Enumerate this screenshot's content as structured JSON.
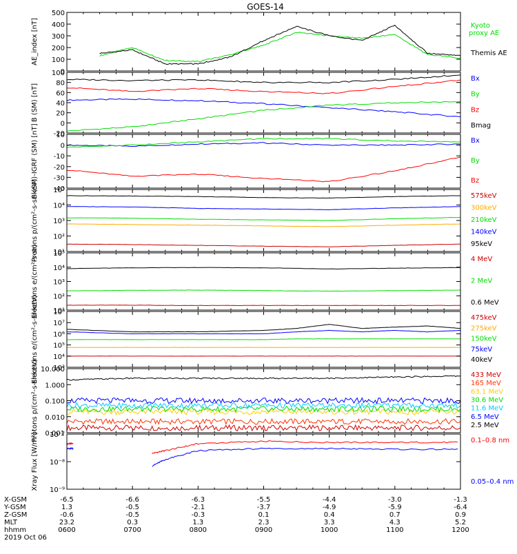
{
  "title": "GOES-14",
  "chart_data": [
    {
      "type": "line",
      "ylabel": "AE_index [nT]",
      "yscale": "linear",
      "ylim": [
        0,
        500
      ],
      "yticks": [
        "0",
        "100",
        "200",
        "300",
        "400",
        "500"
      ],
      "x": [
        6.5,
        7.0,
        7.5,
        8.0,
        8.5,
        9.0,
        9.5,
        10.0,
        10.5,
        11.0,
        11.5,
        12.0
      ],
      "series": [
        {
          "name": "Kyoto proxy AE",
          "color": "#00dd00",
          "values": [
            130,
            200,
            90,
            80,
            140,
            220,
            330,
            300,
            280,
            310,
            140,
            110
          ]
        },
        {
          "name": "Themis AE",
          "color": "#000000",
          "values": [
            150,
            180,
            60,
            60,
            120,
            260,
            380,
            300,
            260,
            390,
            150,
            130
          ]
        }
      ]
    },
    {
      "type": "line",
      "ylabel": "B (SM) [nT]",
      "yscale": "linear",
      "ylim": [
        -20,
        100
      ],
      "yticks": [
        "-20",
        "0",
        "20",
        "40",
        "60",
        "80",
        "100"
      ],
      "x": [
        6.0,
        7.0,
        8.0,
        9.0,
        10.0,
        11.0,
        12.0
      ],
      "series": [
        {
          "name": "Bx",
          "color": "#0000ff",
          "values": [
            45,
            47,
            44,
            38,
            30,
            22,
            12
          ]
        },
        {
          "name": "By",
          "color": "#00dd00",
          "values": [
            -16,
            -8,
            8,
            25,
            35,
            40,
            42
          ]
        },
        {
          "name": "Bz",
          "color": "#ff0000",
          "values": [
            70,
            62,
            68,
            62,
            58,
            72,
            85
          ]
        },
        {
          "name": "Bmag",
          "color": "#000000",
          "values": [
            86,
            84,
            85,
            80,
            80,
            86,
            95
          ]
        }
      ]
    },
    {
      "type": "line",
      "ylabel": "B (SM)-IGRF (SM) [nT]",
      "yscale": "linear",
      "ylim": [
        -40,
        10
      ],
      "yticks": [
        "-40",
        "-30",
        "-20",
        "-10",
        "0",
        "10"
      ],
      "x": [
        6.0,
        7.0,
        8.0,
        9.0,
        10.0,
        11.0,
        12.0
      ],
      "series": [
        {
          "name": "Bx",
          "color": "#0000ff",
          "values": [
            0,
            -1,
            1,
            2,
            0,
            0,
            1
          ]
        },
        {
          "name": "By",
          "color": "#00dd00",
          "values": [
            -2,
            0,
            3,
            6,
            6,
            4,
            3
          ]
        },
        {
          "name": "Bz",
          "color": "#ff0000",
          "values": [
            -23,
            -29,
            -27,
            -31,
            -34,
            -24,
            -11
          ]
        }
      ]
    },
    {
      "type": "line",
      "ylabel": "Protons p/(cm²-s-sr-keV)",
      "yscale": "log",
      "ylim": [
        10,
        100000
      ],
      "yticks": [
        "10¹",
        "10²",
        "10³",
        "10⁴",
        "10⁵"
      ],
      "x": [
        6.0,
        7.0,
        8.0,
        9.0,
        10.0,
        11.0,
        12.0
      ],
      "series": [
        {
          "name": "575keV",
          "color": "#cc0000",
          "values": [
            30,
            28,
            25,
            22,
            20,
            25,
            30
          ]
        },
        {
          "name": "300keV",
          "color": "#ffaa00",
          "values": [
            600,
            550,
            500,
            450,
            400,
            500,
            600
          ]
        },
        {
          "name": "210keV",
          "color": "#00dd00",
          "values": [
            1500,
            1400,
            1200,
            1100,
            1000,
            1300,
            1600
          ]
        },
        {
          "name": "140keV",
          "color": "#0000ff",
          "values": [
            8000,
            7500,
            6000,
            5500,
            5000,
            6500,
            8000
          ]
        },
        {
          "name": "95keV",
          "color": "#000000",
          "values": [
            40000,
            38000,
            35000,
            30000,
            28000,
            35000,
            40000
          ]
        }
      ]
    },
    {
      "type": "line",
      "ylabel": "Electrons e/(cm²-s-sr)",
      "yscale": "log",
      "ylim": [
        10,
        100000
      ],
      "yticks": [
        "10¹",
        "10²",
        "10³",
        "10⁴",
        "10⁵"
      ],
      "x": [
        6.0,
        7.0,
        8.0,
        9.0,
        10.0,
        11.0,
        12.0
      ],
      "series": [
        {
          "name": "4 MeV",
          "color": "#cc0000",
          "values": [
            22,
            22,
            21,
            21,
            21,
            21,
            21
          ]
        },
        {
          "name": "2 MeV",
          "color": "#00dd00",
          "values": [
            220,
            240,
            250,
            230,
            210,
            230,
            250
          ]
        },
        {
          "name": "0.6 MeV",
          "color": "#000000",
          "values": [
            8000,
            9000,
            9500,
            9000,
            7500,
            8500,
            9500
          ]
        }
      ]
    },
    {
      "type": "line",
      "ylabel": "Electrons e/(cm²-s-sr-keV)",
      "yscale": "log",
      "ylim": [
        1000,
        100000000
      ],
      "yticks": [
        "10³",
        "10⁴",
        "10⁵",
        "10⁶",
        "10⁷",
        "10⁸"
      ],
      "x": [
        6.0,
        7.0,
        8.0,
        9.0,
        9.5,
        10.0,
        10.5,
        11.0,
        11.5,
        12.0
      ],
      "series": [
        {
          "name": "475keV",
          "color": "#cc0000",
          "values": [
            10000,
            10000,
            10000,
            10000,
            10000,
            10000,
            10000,
            10000,
            10000,
            10000
          ]
        },
        {
          "name": "275keV",
          "color": "#ffaa00",
          "values": [
            60000,
            60000,
            60000,
            60000,
            60000,
            60000,
            60000,
            60000,
            60000,
            60000
          ]
        },
        {
          "name": "150keV",
          "color": "#00dd00",
          "values": [
            300000,
            300000,
            300000,
            300000,
            350000,
            350000,
            350000,
            350000,
            350000,
            350000
          ]
        },
        {
          "name": "75keV",
          "color": "#0000ff",
          "values": [
            1500000,
            1000000,
            1000000,
            1000000,
            1500000,
            2000000,
            1500000,
            2000000,
            1500000,
            2000000
          ]
        },
        {
          "name": "40keV",
          "color": "#000000",
          "values": [
            2500000,
            1500000,
            1500000,
            2000000,
            3000000,
            7000000,
            3000000,
            4000000,
            5000000,
            3000000
          ]
        }
      ]
    },
    {
      "type": "line",
      "ylabel": "Protons p/(cm²-s-sr-keV)",
      "yscale": "log",
      "ylim": [
        0.001,
        10
      ],
      "yticks": [
        "0.001",
        "0.010",
        "0.100",
        "1.000",
        "10.000"
      ],
      "x": [
        6.0,
        7.0,
        8.0,
        9.0,
        10.0,
        11.0,
        12.0
      ],
      "series": [
        {
          "name": "433 MeV",
          "color": "#cc0000",
          "values": [
            0.002,
            0.002,
            0.002,
            0.002,
            0.002,
            0.002,
            0.002
          ]
        },
        {
          "name": "165 MeV",
          "color": "#ff3300",
          "values": [
            0.005,
            0.005,
            0.005,
            0.005,
            0.005,
            0.005,
            0.005
          ]
        },
        {
          "name": "63.1 MeV",
          "color": "#ffcc00",
          "values": [
            0.02,
            0.02,
            0.02,
            0.02,
            0.02,
            0.02,
            0.02
          ]
        },
        {
          "name": "30.6 MeV",
          "color": "#00dd00",
          "values": [
            0.03,
            0.03,
            0.03,
            0.03,
            0.03,
            0.03,
            0.03
          ]
        },
        {
          "name": "11.6 MeV",
          "color": "#00ccff",
          "values": [
            0.05,
            0.05,
            0.05,
            0.05,
            0.05,
            0.05,
            0.05
          ]
        },
        {
          "name": "6.5 MeV",
          "color": "#0000ff",
          "values": [
            0.1,
            0.1,
            0.1,
            0.1,
            0.1,
            0.1,
            0.1
          ]
        },
        {
          "name": "2.5 MeV",
          "color": "#000000",
          "values": [
            2.0,
            2.5,
            2.5,
            2.5,
            2.5,
            3.0,
            3.5
          ]
        }
      ]
    },
    {
      "type": "line",
      "ylabel": "Xray Flux [W/m²]",
      "yscale": "log",
      "ylim": [
        1e-09,
        1e-07
      ],
      "yticks": [
        "10⁻⁹",
        "10⁻⁸",
        "10⁻⁷"
      ],
      "x": [
        6.0,
        6.1,
        7.3,
        7.5,
        8.0,
        9.0,
        10.0,
        11.0,
        12.0
      ],
      "series": [
        {
          "name": "0.1–0.8 nm",
          "color": "#ff0000",
          "values": [
            4.5e-08,
            4.5e-08,
            2e-08,
            2.5e-08,
            4.5e-08,
            5.5e-08,
            5e-08,
            5e-08,
            5e-08
          ]
        },
        {
          "name": "0.05–0.4 nm",
          "color": "#0000ff",
          "values": [
            3e-08,
            3e-08,
            7e-09,
            1.2e-08,
            2.5e-08,
            3e-08,
            3e-08,
            2.8e-08,
            2.8e-08
          ]
        }
      ]
    }
  ],
  "axis_rows": [
    {
      "label": "X-GSM",
      "values": [
        "-6.5",
        "-6.6",
        "-6.3",
        "-5.5",
        "-4.4",
        "-3.0",
        "-1.3"
      ]
    },
    {
      "label": "Y-GSM",
      "values": [
        "1.3",
        "-0.5",
        "-2.1",
        "-3.7",
        "-4.9",
        "-5.9",
        "-6.4"
      ]
    },
    {
      "label": "Z-GSM",
      "values": [
        "-0.6",
        "-0.5",
        "-0.3",
        "0.1",
        "0.4",
        "0.7",
        "0.9"
      ]
    },
    {
      "label": "MLT",
      "values": [
        "23.2",
        "0.3",
        "1.3",
        "2.3",
        "3.3",
        "4.3",
        "5.2"
      ]
    },
    {
      "label": "hhmm",
      "values": [
        "0600",
        "0700",
        "0800",
        "0900",
        "1000",
        "1100",
        "1200"
      ]
    }
  ],
  "date": "2019 Oct 06",
  "legend_lines": {
    "ae": [
      "Kyoto",
      "proxy AE",
      "Themis AE"
    ]
  }
}
